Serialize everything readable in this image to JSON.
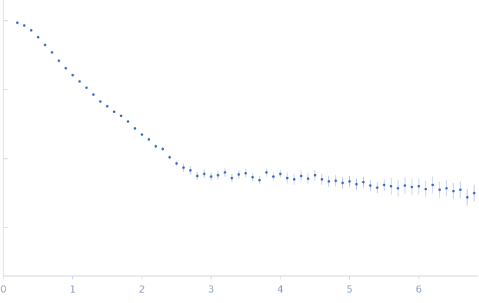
{
  "chart_data": {
    "type": "scatter",
    "x": [
      0.2,
      0.3,
      0.4,
      0.5,
      0.6,
      0.7,
      0.8,
      0.9,
      1.0,
      1.1,
      1.2,
      1.3,
      1.4,
      1.5,
      1.6,
      1.7,
      1.8,
      1.9,
      2.0,
      2.1,
      2.2,
      2.3,
      2.4,
      2.5,
      2.6,
      2.7,
      2.8,
      2.9,
      3.0,
      3.1,
      3.2,
      3.3,
      3.4,
      3.5,
      3.6,
      3.7,
      3.8,
      3.9,
      4.0,
      4.1,
      4.2,
      4.3,
      4.4,
      4.5,
      4.6,
      4.7,
      4.8,
      4.9,
      5.0,
      5.1,
      5.2,
      5.3,
      5.4,
      5.5,
      5.6,
      5.7,
      5.8,
      5.9,
      6.0,
      6.1,
      6.2,
      6.3,
      6.4,
      6.5,
      6.6,
      6.7,
      6.8
    ],
    "values": [
      2.97,
      2.93,
      2.86,
      2.76,
      2.65,
      2.54,
      2.42,
      2.31,
      2.21,
      2.12,
      2.03,
      1.93,
      1.83,
      1.76,
      1.68,
      1.62,
      1.54,
      1.44,
      1.35,
      1.28,
      1.18,
      1.14,
      1.02,
      0.93,
      0.87,
      0.83,
      0.75,
      0.78,
      0.74,
      0.76,
      0.8,
      0.72,
      0.77,
      0.79,
      0.73,
      0.69,
      0.8,
      0.74,
      0.78,
      0.72,
      0.7,
      0.75,
      0.71,
      0.76,
      0.7,
      0.67,
      0.68,
      0.65,
      0.67,
      0.63,
      0.66,
      0.61,
      0.58,
      0.62,
      0.6,
      0.57,
      0.61,
      0.59,
      0.6,
      0.56,
      0.62,
      0.55,
      0.57,
      0.53,
      0.55,
      0.44,
      0.5
    ],
    "errors": [
      0.01,
      0.01,
      0.01,
      0.01,
      0.01,
      0.01,
      0.01,
      0.01,
      0.01,
      0.01,
      0.01,
      0.01,
      0.01,
      0.01,
      0.01,
      0.01,
      0.01,
      0.01,
      0.01,
      0.03,
      0.03,
      0.03,
      0.03,
      0.03,
      0.06,
      0.06,
      0.06,
      0.06,
      0.06,
      0.06,
      0.06,
      0.06,
      0.06,
      0.06,
      0.06,
      0.06,
      0.06,
      0.06,
      0.06,
      0.08,
      0.08,
      0.08,
      0.08,
      0.08,
      0.08,
      0.08,
      0.08,
      0.08,
      0.08,
      0.08,
      0.08,
      0.08,
      0.08,
      0.08,
      0.12,
      0.12,
      0.12,
      0.12,
      0.12,
      0.12,
      0.12,
      0.12,
      0.12,
      0.12,
      0.12,
      0.12,
      0.12
    ],
    "color": "#3a65b8",
    "error_color": "#a9bfe3",
    "xlim": [
      0,
      6.86
    ],
    "xticks": [
      0,
      1,
      2,
      3,
      4,
      5,
      6
    ],
    "ylim": [
      -0.7,
      3.3
    ],
    "yticks": [
      0,
      1,
      2,
      3
    ]
  }
}
